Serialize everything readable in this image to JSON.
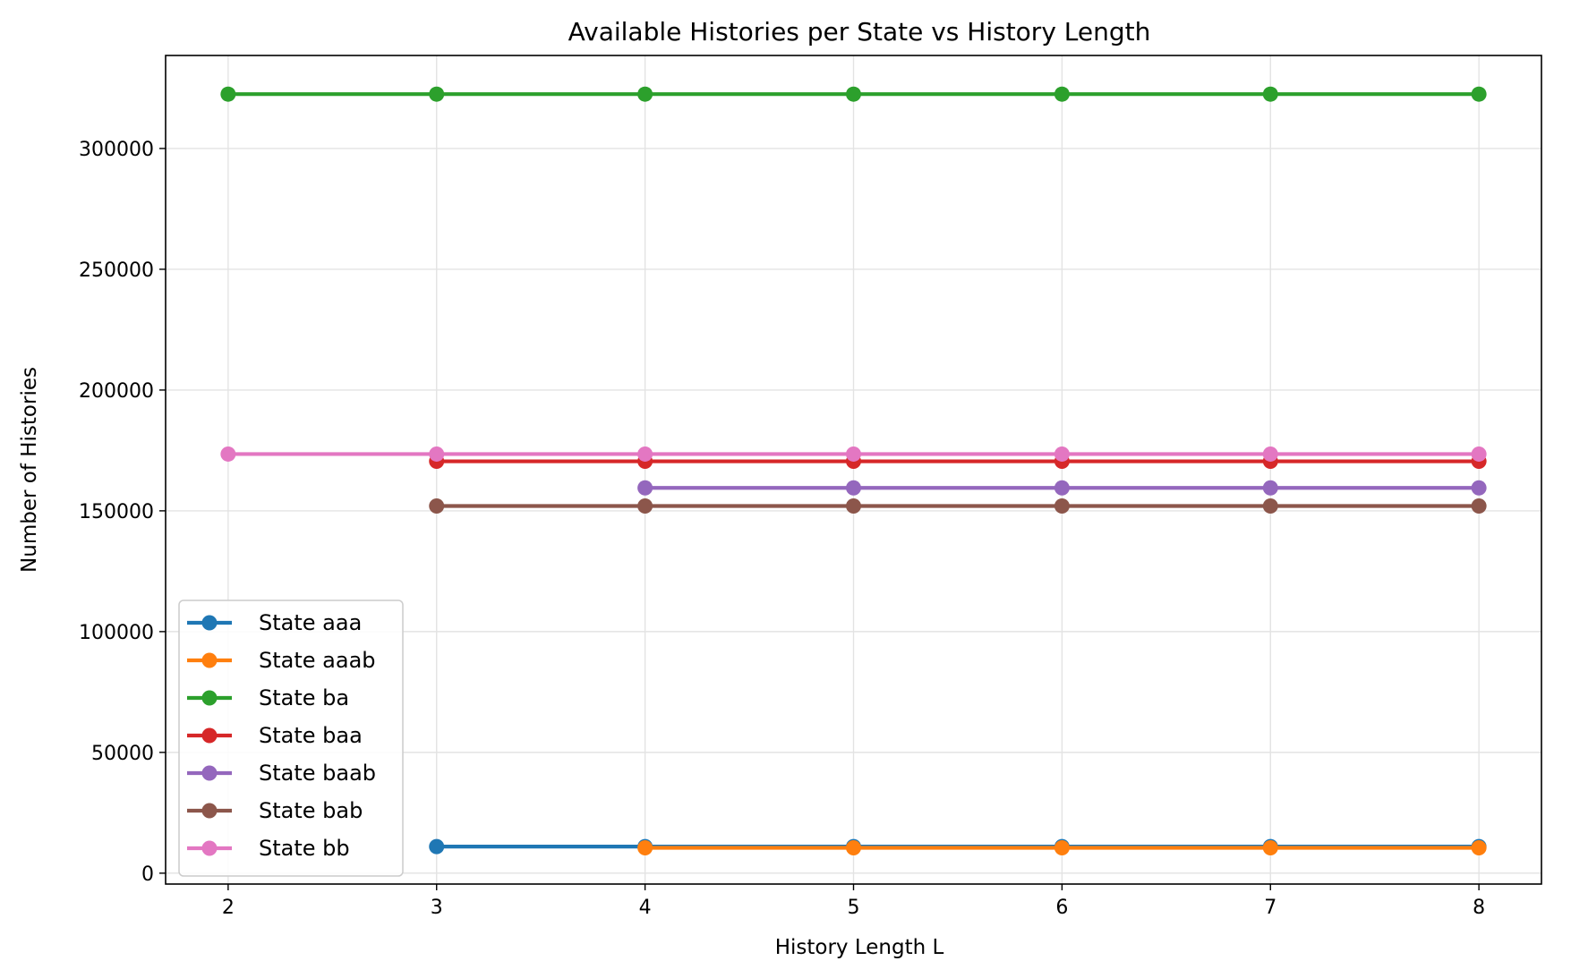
{
  "chart_data": {
    "type": "line",
    "title": "Available Histories per State vs History Length",
    "xlabel": "History Length L",
    "ylabel": "Number of Histories",
    "xlim": [
      1.7,
      8.3
    ],
    "ylim": [
      -4500,
      338500
    ],
    "x_ticks": [
      2,
      3,
      4,
      5,
      6,
      7,
      8
    ],
    "y_ticks": [
      0,
      50000,
      100000,
      150000,
      200000,
      250000,
      300000
    ],
    "grid": true,
    "legend_position": "lower-left",
    "series": [
      {
        "name": "State aaa",
        "color": "#1f77b4",
        "x": [
          3,
          4,
          5,
          6,
          7,
          8
        ],
        "values": [
          11000,
          11000,
          11000,
          11000,
          11000,
          11000
        ]
      },
      {
        "name": "State aaab",
        "color": "#ff7f0e",
        "x": [
          4,
          5,
          6,
          7,
          8
        ],
        "values": [
          10500,
          10500,
          10500,
          10500,
          10500
        ]
      },
      {
        "name": "State ba",
        "color": "#2ca02c",
        "x": [
          2,
          3,
          4,
          5,
          6,
          7,
          8
        ],
        "values": [
          322500,
          322500,
          322500,
          322500,
          322500,
          322500,
          322500
        ]
      },
      {
        "name": "State baa",
        "color": "#d62728",
        "x": [
          3,
          4,
          5,
          6,
          7,
          8
        ],
        "values": [
          170500,
          170500,
          170500,
          170500,
          170500,
          170500
        ]
      },
      {
        "name": "State baab",
        "color": "#9467bd",
        "x": [
          4,
          5,
          6,
          7,
          8
        ],
        "values": [
          159500,
          159500,
          159500,
          159500,
          159500
        ]
      },
      {
        "name": "State bab",
        "color": "#8c564b",
        "x": [
          3,
          4,
          5,
          6,
          7,
          8
        ],
        "values": [
          152000,
          152000,
          152000,
          152000,
          152000,
          152000
        ]
      },
      {
        "name": "State bb",
        "color": "#e377c2",
        "x": [
          2,
          3,
          4,
          5,
          6,
          7,
          8
        ],
        "values": [
          173500,
          173500,
          173500,
          173500,
          173500,
          173500,
          173500
        ]
      }
    ]
  }
}
